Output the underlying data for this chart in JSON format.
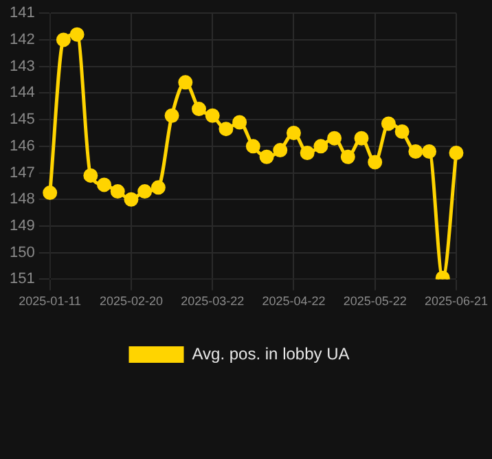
{
  "chart_data": {
    "type": "line",
    "categories": [
      "2025-01-11",
      null,
      null,
      null,
      null,
      null,
      "2025-02-20",
      null,
      null,
      null,
      null,
      null,
      "2025-03-22",
      null,
      null,
      null,
      null,
      null,
      "2025-04-22",
      null,
      null,
      null,
      null,
      null,
      "2025-05-22",
      null,
      null,
      null,
      null,
      null,
      "2025-06-21"
    ],
    "series": [
      {
        "name": "Avg. pos. in lobby UA",
        "color": "#ffd400",
        "values": [
          147.75,
          142.0,
          141.8,
          147.1,
          147.45,
          147.7,
          148.0,
          147.7,
          147.55,
          144.85,
          143.6,
          144.6,
          144.85,
          145.35,
          145.1,
          146.0,
          146.4,
          146.15,
          145.5,
          146.25,
          146.0,
          145.7,
          146.4,
          145.7,
          146.6,
          145.15,
          145.45,
          146.2,
          146.2,
          150.95,
          146.25
        ]
      }
    ],
    "ylim": [
      151,
      141
    ],
    "yticks": [
      141,
      142,
      143,
      144,
      145,
      146,
      147,
      148,
      149,
      150,
      151
    ],
    "grid": true,
    "legend": "bottom",
    "marker": "circle"
  }
}
